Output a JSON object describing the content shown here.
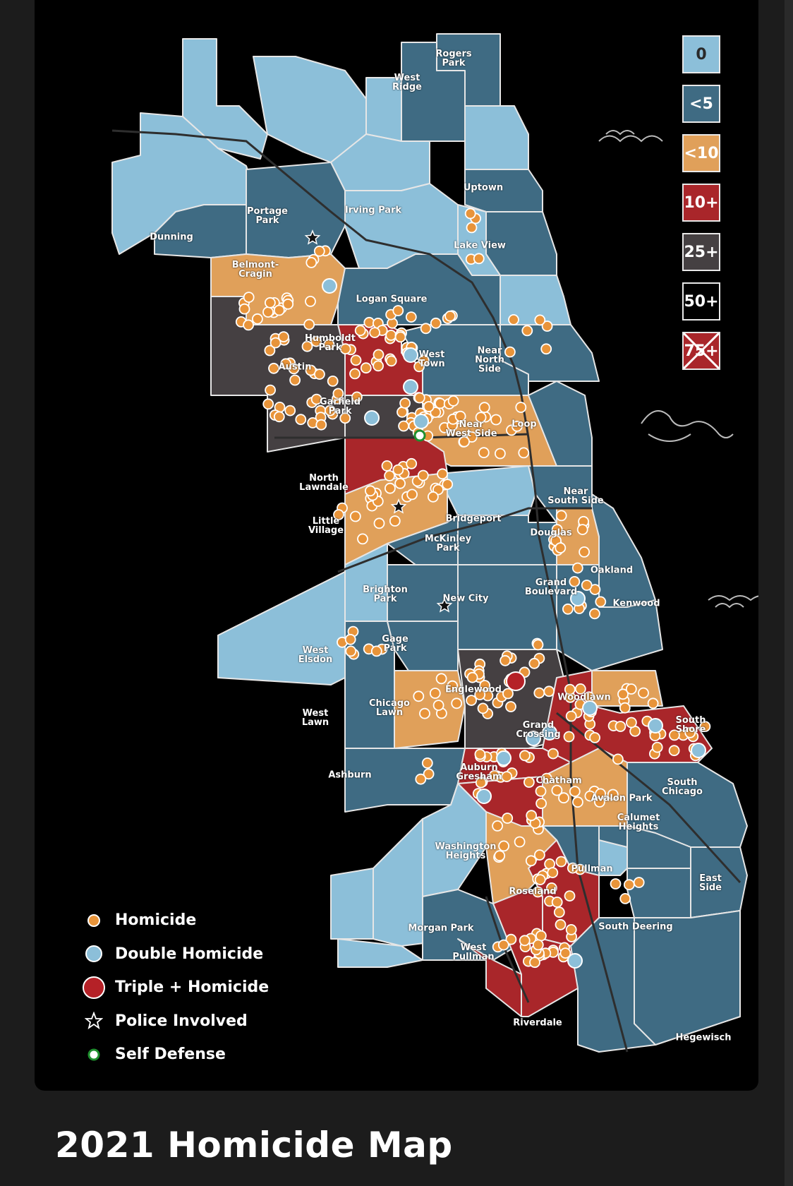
{
  "page_title": "2021 Homicide Map",
  "colors": {
    "zero": "#8cbfd9",
    "lt5": "#3f6b83",
    "lt10": "#e0a05a",
    "ten_plus": "#a9262a",
    "twentyfive_plus": "#454042",
    "fifty_plus": "#000000",
    "homicide_dot": "#e8943a",
    "double_dot": "#8cbfd9",
    "triple_dot": "#b52127",
    "self_defense_dot": "#1f8f2e"
  },
  "scale": [
    {
      "label": "0",
      "color": "#8cbfd9"
    },
    {
      "label": "<5",
      "color": "#3f6b83"
    },
    {
      "label": "<10",
      "color": "#e0a05a"
    },
    {
      "label": "10+",
      "color": "#a9262a"
    },
    {
      "label": "25+",
      "color": "#454042"
    },
    {
      "label": "50+",
      "color": "#000000"
    },
    {
      "label": "75+",
      "color": "#a9262a"
    }
  ],
  "legend": [
    {
      "label": "Homicide",
      "icon": "homicide-dot-icon"
    },
    {
      "label": "Double Homicide",
      "icon": "double-homicide-dot-icon"
    },
    {
      "label": "Triple + Homicide",
      "icon": "triple-homicide-dot-icon"
    },
    {
      "label": "Police Involved",
      "icon": "star-icon"
    },
    {
      "label": "Self Defense",
      "icon": "self-defense-dot-icon"
    }
  ],
  "neighborhoods": [
    "Rogers\nPark",
    "West\nRidge",
    "Uptown",
    "Irving Park",
    "Portage\nPark",
    "Dunning",
    "Lake View",
    "Belmont-\nCragin",
    "Logan Square",
    "Humboldt\nPark",
    "West\nTown",
    "Near\nNorth\nSide",
    "Austin",
    "Garfield\nPark",
    "Near\nWest Side",
    "Loop",
    "North\nLawndale",
    "Near\nSouth Side",
    "Little\nVillage",
    "Bridgeport",
    "Douglas",
    "McKinley\nPark",
    "Oakland",
    "Brighton\nPark",
    "New City",
    "Grand\nBoulevard",
    "Kenwood",
    "Gage\nPark",
    "West\nElsdon",
    "Englewood",
    "Woodlawn",
    "Chicago\nLawn",
    "West\nLawn",
    "Grand\nCrossing",
    "South\nShore",
    "Ashburn",
    "Auburn\nGresham",
    "Chatham",
    "South\nChicago",
    "Avalon Park",
    "Calumet\nHeights",
    "Washington\nHeights",
    "Pullman",
    "Roseland",
    "East\nSide",
    "Morgan Park",
    "South Deering",
    "West\nPullman",
    "Riverdale",
    "Hegewisch"
  ]
}
